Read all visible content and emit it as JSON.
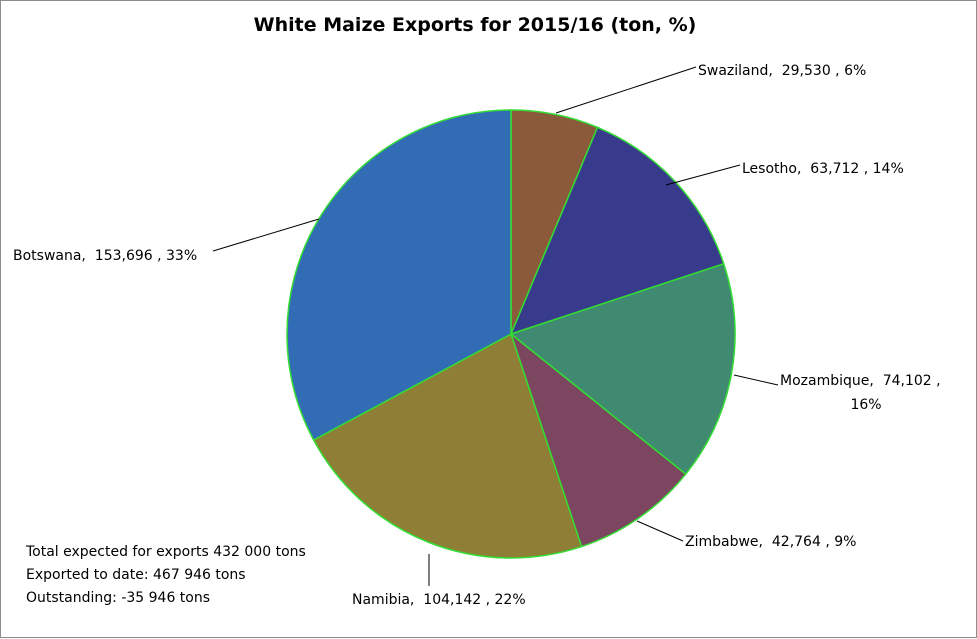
{
  "chart_data": {
    "type": "pie",
    "title": "White Maize Exports for 2015/16 (ton, %)",
    "slices": [
      {
        "name": "Swaziland",
        "value": 29530,
        "value_text": "29,530",
        "percent_text": "6%",
        "color": "#8a5a3a"
      },
      {
        "name": "Lesotho",
        "value": 63712,
        "value_text": "63,712",
        "percent_text": "14%",
        "color": "#383a8c"
      },
      {
        "name": "Mozambique",
        "value": 74102,
        "value_text": "74,102",
        "percent_text": "16%",
        "color": "#3f8a70"
      },
      {
        "name": "Zimbabwe",
        "value": 42764,
        "value_text": "42,764",
        "percent_text": "9%",
        "color": "#7c4660"
      },
      {
        "name": "Namibia",
        "value": 104142,
        "value_text": "104,142",
        "percent_text": "22%",
        "color": "#8f7e35"
      },
      {
        "name": "Botswana",
        "value": 153696,
        "value_text": "153,696",
        "percent_text": "33%",
        "color": "#316cb5"
      }
    ],
    "slice_border_color": "#33dd33",
    "label_format": "{name},  {value} , {percent}"
  },
  "notes": [
    "Total expected for exports 432 000 tons",
    "Exported to date: 467 946 tons",
    "Outstanding: -35 946 tons"
  ]
}
